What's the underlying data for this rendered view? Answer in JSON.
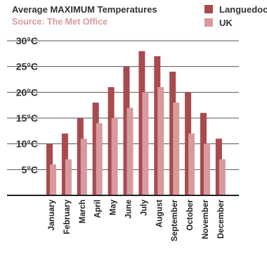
{
  "chart_data": {
    "type": "bar",
    "title": "Average MAXIMUM Temperatures",
    "subtitle": "Source: The Met Office",
    "categories": [
      "January",
      "February",
      "March",
      "April",
      "May",
      "June",
      "July",
      "August",
      "September",
      "October",
      "November",
      "December"
    ],
    "series": [
      {
        "name": "Languedoc",
        "values": [
          10,
          12,
          15,
          18,
          21,
          25,
          28,
          27,
          24,
          20,
          16,
          11
        ]
      },
      {
        "name": "UK",
        "values": [
          6,
          7,
          11,
          14,
          15,
          17,
          20,
          21,
          18,
          12,
          10,
          7
        ]
      }
    ],
    "yticks": [
      "5°C",
      "10°C",
      "15°C",
      "20°C",
      "25°C",
      "30°C"
    ],
    "ytick_values": [
      5,
      10,
      15,
      20,
      25,
      30
    ],
    "ylim": [
      0,
      30
    ],
    "grid": true,
    "legend_position": "top-right"
  },
  "colors": {
    "languedoc": "#a84a4e",
    "uk": "#d99a9c",
    "subtitle": "#d99a9c",
    "grid": "#555555",
    "axis": "#222222"
  }
}
